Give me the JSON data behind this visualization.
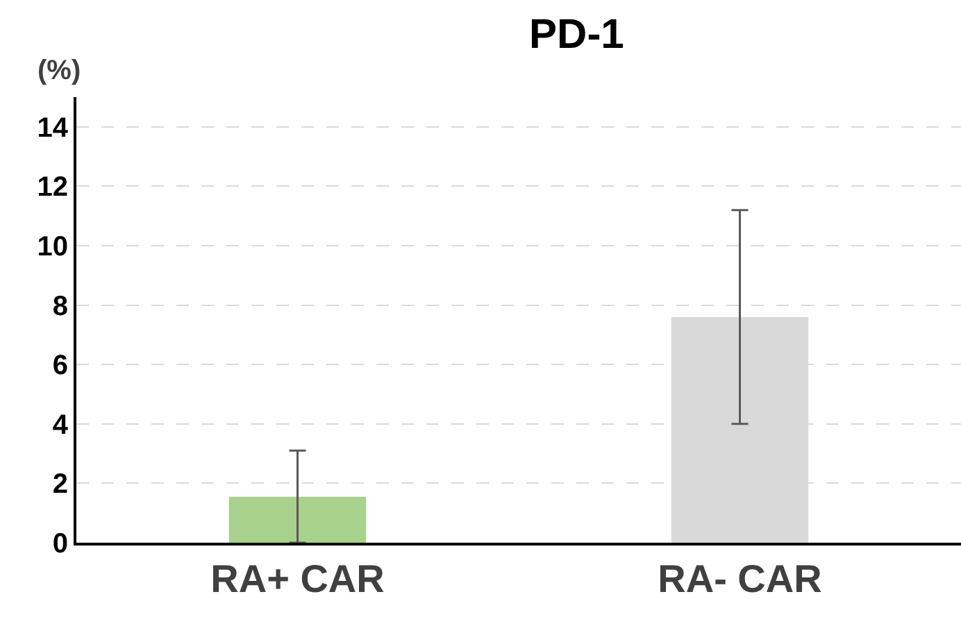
{
  "chart_data": {
    "type": "bar",
    "title": "PD-1",
    "ylabel": "(%)",
    "categories": [
      "RA+ CAR",
      "RA- CAR"
    ],
    "values": [
      1.55,
      7.6
    ],
    "colors": [
      "#a9d18e",
      "#d9d9d9"
    ],
    "errors": [
      1.55,
      3.6
    ],
    "ylim": [
      0,
      15
    ],
    "yticks": [
      0,
      2,
      4,
      6,
      8,
      10,
      12,
      14
    ],
    "grid": "y"
  }
}
